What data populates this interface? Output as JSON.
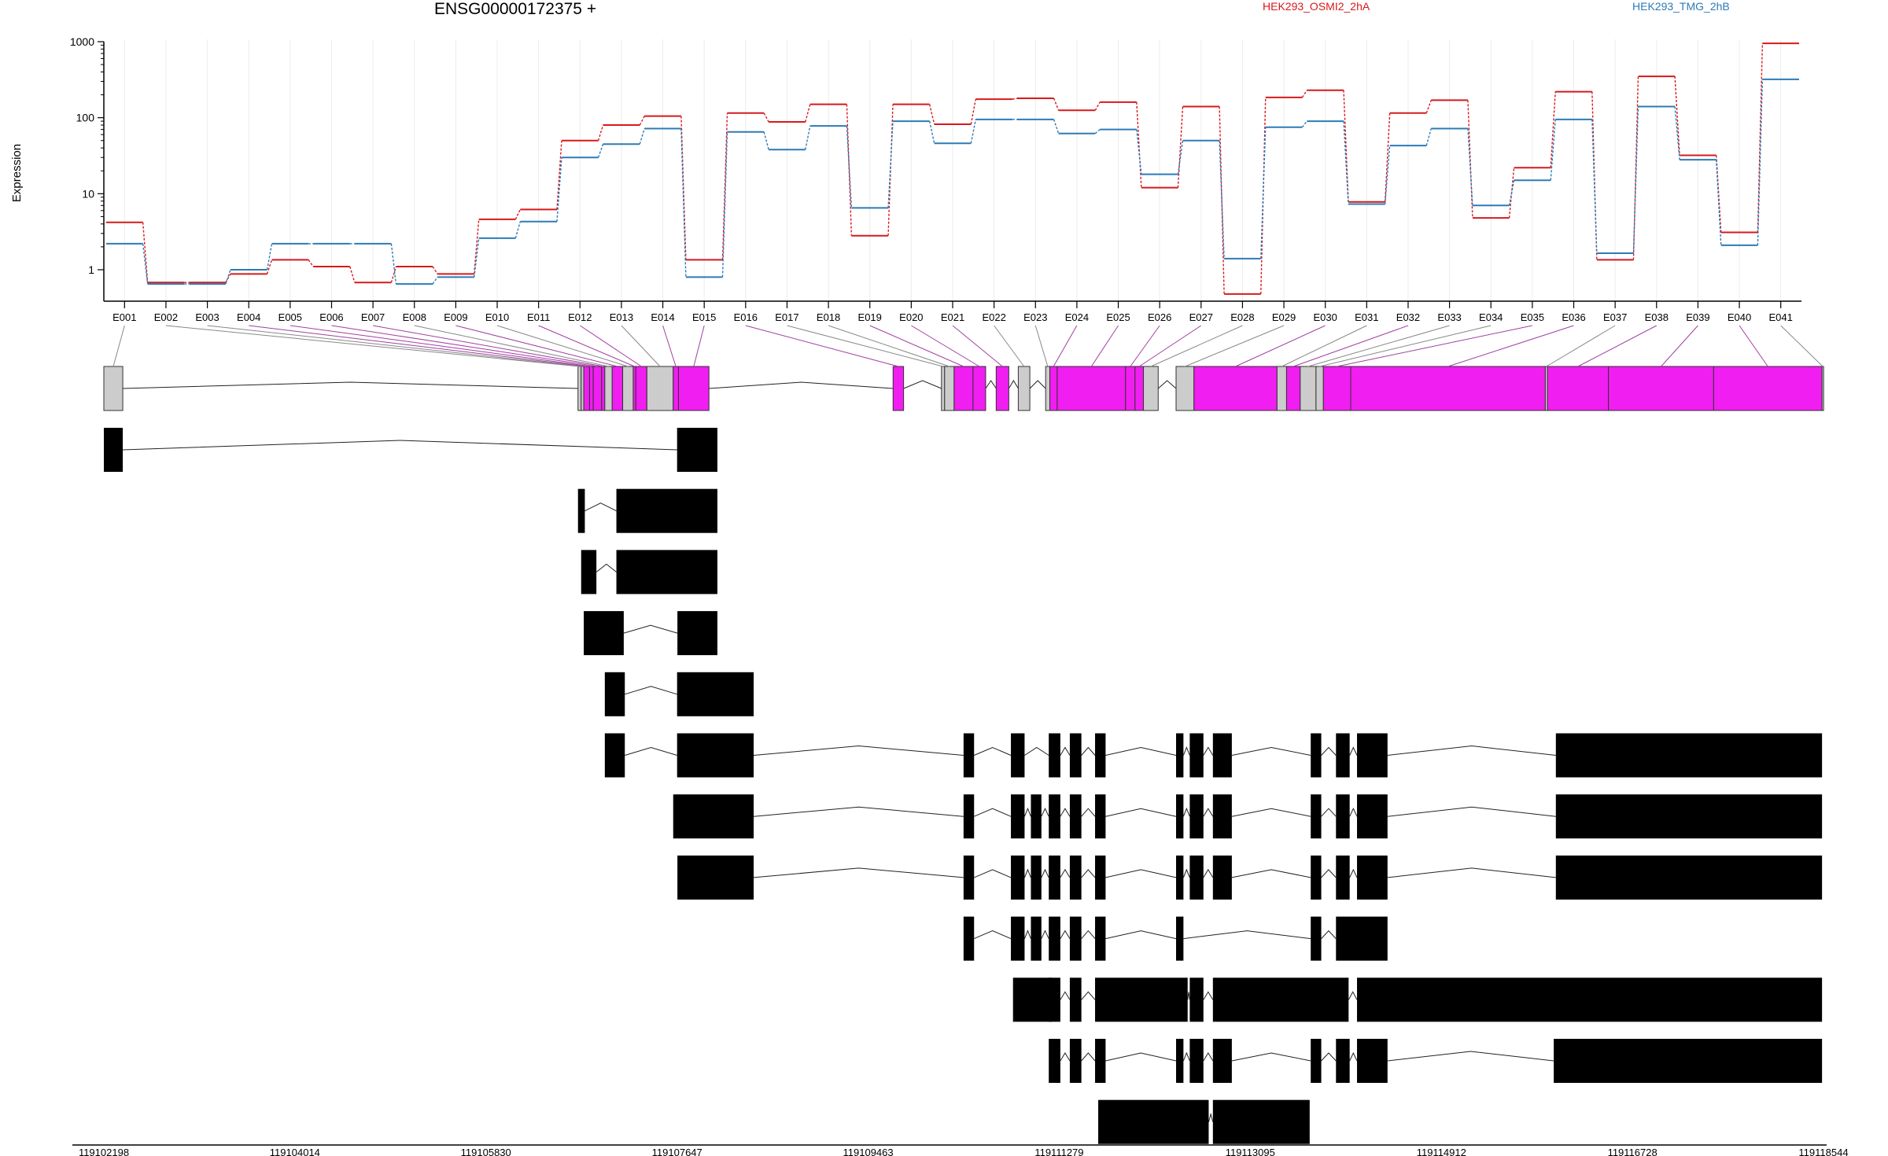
{
  "header": {
    "gene_title": "ENSG00000172375 +",
    "legend": [
      {
        "label": "HEK293_OSMI2_2hA",
        "color": "#d7191c"
      },
      {
        "label": "HEK293_TMG_2hB",
        "color": "#2c7bb6"
      }
    ]
  },
  "chart_data": {
    "type": "line",
    "title": "ENSG00000172375 +",
    "xlabel": "",
    "ylabel": "Expression",
    "yscale": "log",
    "ylim": [
      0.45,
      1000
    ],
    "ytick_labels": [
      "1",
      "10",
      "100",
      "1000"
    ],
    "grid": "vertical",
    "legend_position": "top-right",
    "categories": [
      "E001",
      "E002",
      "E003",
      "E004",
      "E005",
      "E006",
      "E007",
      "E008",
      "E009",
      "E010",
      "E011",
      "E012",
      "E013",
      "E014",
      "E015",
      "E016",
      "E017",
      "E018",
      "E019",
      "E020",
      "E021",
      "E022",
      "E023",
      "E024",
      "E025",
      "E026",
      "E027",
      "E028",
      "E029",
      "E030",
      "E031",
      "E032",
      "E033",
      "E034",
      "E035",
      "E036",
      "E037",
      "E038",
      "E039",
      "E040",
      "E041"
    ],
    "series": [
      {
        "name": "HEK293_OSMI2_2hA",
        "color": "#d7191c",
        "values": [
          4.2,
          0.68,
          0.68,
          0.88,
          1.35,
          1.1,
          0.68,
          1.1,
          0.88,
          4.6,
          6.2,
          50,
          80,
          105,
          1.35,
          115,
          88,
          150,
          2.8,
          150,
          82,
          175,
          180,
          125,
          160,
          12,
          140,
          0.48,
          185,
          230,
          7.8,
          115,
          170,
          4.8,
          22,
          220,
          1.35,
          350,
          32,
          3.1,
          950
        ]
      },
      {
        "name": "HEK293_TMG_2hB",
        "color": "#2c7bb6",
        "values": [
          2.2,
          0.65,
          0.65,
          1.0,
          2.2,
          2.2,
          2.2,
          0.65,
          0.8,
          2.6,
          4.3,
          30,
          45,
          72,
          0.8,
          65,
          38,
          78,
          6.5,
          90,
          46,
          95,
          95,
          62,
          70,
          18,
          50,
          1.4,
          75,
          90,
          7.3,
          43,
          72,
          7.0,
          15,
          95,
          1.65,
          140,
          28,
          2.1,
          320
        ]
      }
    ],
    "genomic_axis": {
      "tick_labels": [
        "119102198",
        "119104014",
        "119105830",
        "119107647",
        "119109463",
        "119111279",
        "119113095",
        "119114912",
        "119116728",
        "119118544"
      ]
    },
    "exon_bins": [
      {
        "id": "E001",
        "start": 119102198,
        "end": 119102378,
        "differential": false
      },
      {
        "id": "E002",
        "start": 119106705,
        "end": 119106735,
        "differential": false
      },
      {
        "id": "E003",
        "start": 119106735,
        "end": 119106760,
        "differential": false
      },
      {
        "id": "E004",
        "start": 119106760,
        "end": 119106815,
        "differential": true
      },
      {
        "id": "E005",
        "start": 119106815,
        "end": 119106850,
        "differential": true
      },
      {
        "id": "E006",
        "start": 119106850,
        "end": 119106930,
        "differential": true
      },
      {
        "id": "E007",
        "start": 119106930,
        "end": 119106960,
        "differential": true
      },
      {
        "id": "E008",
        "start": 119106960,
        "end": 119107030,
        "differential": false
      },
      {
        "id": "E009",
        "start": 119107030,
        "end": 119107130,
        "differential": true
      },
      {
        "id": "E010",
        "start": 119107130,
        "end": 119107230,
        "differential": false
      },
      {
        "id": "E011",
        "start": 119107230,
        "end": 119107255,
        "differential": true
      },
      {
        "id": "E012",
        "start": 119107255,
        "end": 119107360,
        "differential": true
      },
      {
        "id": "E013",
        "start": 119107360,
        "end": 119107610,
        "differential": false
      },
      {
        "id": "E014",
        "start": 119107610,
        "end": 119107660,
        "differential": true
      },
      {
        "id": "E015",
        "start": 119107660,
        "end": 119107950,
        "differential": true
      },
      {
        "id": "E016",
        "start": 119109700,
        "end": 119109800,
        "differential": true
      },
      {
        "id": "E017",
        "start": 119110160,
        "end": 119110190,
        "differential": false
      },
      {
        "id": "E018",
        "start": 119110190,
        "end": 119110280,
        "differential": false
      },
      {
        "id": "E019",
        "start": 119110280,
        "end": 119110460,
        "differential": true
      },
      {
        "id": "E020",
        "start": 119110460,
        "end": 119110580,
        "differential": true
      },
      {
        "id": "E021",
        "start": 119110680,
        "end": 119110800,
        "differential": true
      },
      {
        "id": "E022",
        "start": 119110890,
        "end": 119111000,
        "differential": false
      },
      {
        "id": "E023",
        "start": 119111150,
        "end": 119111190,
        "differential": false
      },
      {
        "id": "E024",
        "start": 119111190,
        "end": 119111260,
        "differential": true
      },
      {
        "id": "E025",
        "start": 119111260,
        "end": 119111910,
        "differential": true
      },
      {
        "id": "E026",
        "start": 119111910,
        "end": 119112000,
        "differential": true
      },
      {
        "id": "E027",
        "start": 119112000,
        "end": 119112080,
        "differential": true
      },
      {
        "id": "E028",
        "start": 119112080,
        "end": 119112220,
        "differential": false
      },
      {
        "id": "E029",
        "start": 119112390,
        "end": 119112560,
        "differential": false
      },
      {
        "id": "E030",
        "start": 119112560,
        "end": 119113350,
        "differential": true
      },
      {
        "id": "E031",
        "start": 119113350,
        "end": 119113440,
        "differential": false
      },
      {
        "id": "E032",
        "start": 119113440,
        "end": 119113570,
        "differential": true
      },
      {
        "id": "E033",
        "start": 119113570,
        "end": 119113720,
        "differential": false
      },
      {
        "id": "E034",
        "start": 119113720,
        "end": 119113790,
        "differential": false
      },
      {
        "id": "E035",
        "start": 119113790,
        "end": 119114050,
        "differential": true
      },
      {
        "id": "E036",
        "start": 119114050,
        "end": 119115900,
        "differential": true
      },
      {
        "id": "E037",
        "start": 119115900,
        "end": 119115920,
        "differential": false
      },
      {
        "id": "E038",
        "start": 119115920,
        "end": 119116500,
        "differential": true
      },
      {
        "id": "E039",
        "start": 119116500,
        "end": 119117500,
        "differential": true
      },
      {
        "id": "E040",
        "start": 119117500,
        "end": 119118530,
        "differential": true
      },
      {
        "id": "E041",
        "start": 119118530,
        "end": 119118544,
        "differential": false
      }
    ],
    "transcripts": [
      {
        "exons": [
          [
            119102198,
            119102378
          ],
          [
            119107647,
            119108030
          ]
        ]
      },
      {
        "exons": [
          [
            119106705,
            119106770
          ],
          [
            119107070,
            119108030
          ]
        ]
      },
      {
        "exons": [
          [
            119106735,
            119106880
          ],
          [
            119107070,
            119108030
          ]
        ]
      },
      {
        "exons": [
          [
            119106760,
            119107140
          ],
          [
            119107650,
            119108030
          ]
        ]
      },
      {
        "exons": [
          [
            119106960,
            119107150
          ],
          [
            119107647,
            119108375
          ]
        ]
      },
      {
        "exons": [
          [
            119106960,
            119107150
          ],
          [
            119107647,
            119108375
          ],
          [
            119110370,
            119110470
          ],
          [
            119110820,
            119110950
          ],
          [
            119111180,
            119111290
          ],
          [
            119111380,
            119111490
          ],
          [
            119111620,
            119111720
          ],
          [
            119112390,
            119112460
          ],
          [
            119112520,
            119112650
          ],
          [
            119112740,
            119112920
          ],
          [
            119113670,
            119113770
          ],
          [
            119113910,
            119114040
          ],
          [
            119114110,
            119114400
          ],
          [
            119116000,
            119118530
          ]
        ]
      },
      {
        "exons": [
          [
            119107610,
            119108375
          ],
          [
            119110370,
            119110470
          ],
          [
            119110820,
            119110950
          ],
          [
            119111010,
            119111110
          ],
          [
            119111180,
            119111290
          ],
          [
            119111380,
            119111490
          ],
          [
            119111620,
            119111720
          ],
          [
            119112390,
            119112460
          ],
          [
            119112520,
            119112650
          ],
          [
            119112740,
            119112920
          ],
          [
            119113670,
            119113770
          ],
          [
            119113910,
            119114040
          ],
          [
            119114110,
            119114400
          ],
          [
            119116000,
            119118530
          ]
        ]
      },
      {
        "exons": [
          [
            119107650,
            119108375
          ],
          [
            119110370,
            119110470
          ],
          [
            119110820,
            119110950
          ],
          [
            119111010,
            119111110
          ],
          [
            119111180,
            119111290
          ],
          [
            119111380,
            119111490
          ],
          [
            119111620,
            119111720
          ],
          [
            119112390,
            119112460
          ],
          [
            119112520,
            119112650
          ],
          [
            119112740,
            119112920
          ],
          [
            119113670,
            119113770
          ],
          [
            119113910,
            119114040
          ],
          [
            119114110,
            119114400
          ],
          [
            119116000,
            119118530
          ]
        ]
      },
      {
        "exons": [
          [
            119110370,
            119110470
          ],
          [
            119110820,
            119110950
          ],
          [
            119111010,
            119111110
          ],
          [
            119111180,
            119111290
          ],
          [
            119111380,
            119111490
          ],
          [
            119111620,
            119111720
          ],
          [
            119112390,
            119112460
          ],
          [
            119113670,
            119113770
          ],
          [
            119113910,
            119114400
          ]
        ]
      },
      {
        "exons": [
          [
            119110840,
            119111210
          ],
          [
            119111180,
            119111290
          ],
          [
            119111380,
            119111490
          ],
          [
            119111620,
            119112500
          ],
          [
            119112520,
            119112650
          ],
          [
            119112740,
            119114030
          ],
          [
            119114110,
            119118530
          ]
        ]
      },
      {
        "exons": [
          [
            119111180,
            119111290
          ],
          [
            119111380,
            119111490
          ],
          [
            119111620,
            119111720
          ],
          [
            119112390,
            119112460
          ],
          [
            119112520,
            119112650
          ],
          [
            119112740,
            119112920
          ],
          [
            119113670,
            119113770
          ],
          [
            119113910,
            119114040
          ],
          [
            119114110,
            119114400
          ],
          [
            119115980,
            119118530
          ]
        ]
      },
      {
        "exons": [
          [
            119111650,
            119112700
          ],
          [
            119112740,
            119113660
          ]
        ]
      }
    ]
  }
}
